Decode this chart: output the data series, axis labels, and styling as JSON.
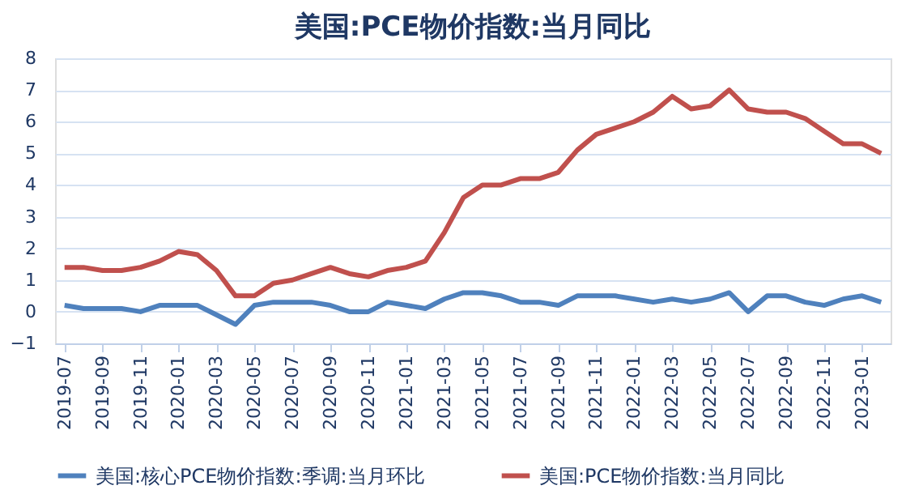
{
  "chart_data": {
    "type": "line",
    "title": "美国:PCE物价指数:当月同比",
    "categories": [
      "2019-07",
      null,
      "2019-09",
      null,
      "2019-11",
      null,
      "2020-01",
      null,
      "2020-03",
      null,
      "2020-05",
      null,
      "2020-07",
      null,
      "2020-09",
      null,
      "2020-11",
      null,
      "2021-01",
      null,
      "2021-03",
      null,
      "2021-05",
      null,
      "2021-07",
      null,
      "2021-09",
      null,
      "2021-11",
      null,
      "2022-01",
      null,
      "2022-03",
      null,
      "2022-05",
      null,
      "2022-07",
      null,
      "2022-09",
      null,
      "2022-11",
      null,
      "2023-01",
      null
    ],
    "series": [
      {
        "name": "美国:核心PCE物价指数:季调:当月环比",
        "color": "#4f81bd",
        "values": [
          0.2,
          0.1,
          0.1,
          0.1,
          0.0,
          0.2,
          0.2,
          0.2,
          -0.1,
          -0.4,
          0.2,
          0.3,
          0.3,
          0.3,
          0.2,
          0.0,
          0.0,
          0.3,
          0.2,
          0.1,
          0.4,
          0.6,
          0.6,
          0.5,
          0.3,
          0.3,
          0.2,
          0.5,
          0.5,
          0.5,
          0.4,
          0.3,
          0.4,
          0.3,
          0.4,
          0.6,
          0.0,
          0.5,
          0.5,
          0.3,
          0.2,
          0.4,
          0.5,
          0.3
        ]
      },
      {
        "name": "美国:PCE物价指数:当月同比",
        "color": "#c0504d",
        "values": [
          1.4,
          1.4,
          1.3,
          1.3,
          1.4,
          1.6,
          1.9,
          1.8,
          1.3,
          0.5,
          0.5,
          0.9,
          1.0,
          1.2,
          1.4,
          1.2,
          1.1,
          1.3,
          1.4,
          1.6,
          2.5,
          3.6,
          4.0,
          4.0,
          4.2,
          4.2,
          4.4,
          5.1,
          5.6,
          5.8,
          6.0,
          6.3,
          6.8,
          6.4,
          6.5,
          7.0,
          6.4,
          6.3,
          6.3,
          6.1,
          5.7,
          5.3,
          5.3,
          5.0
        ]
      }
    ],
    "ylim": [
      -1,
      8
    ],
    "yticks": [
      -1,
      0,
      1,
      2,
      3,
      4,
      5,
      6,
      7,
      8
    ],
    "grid": "y",
    "legend": "bottom",
    "marker": "none",
    "line_style": "solid"
  }
}
